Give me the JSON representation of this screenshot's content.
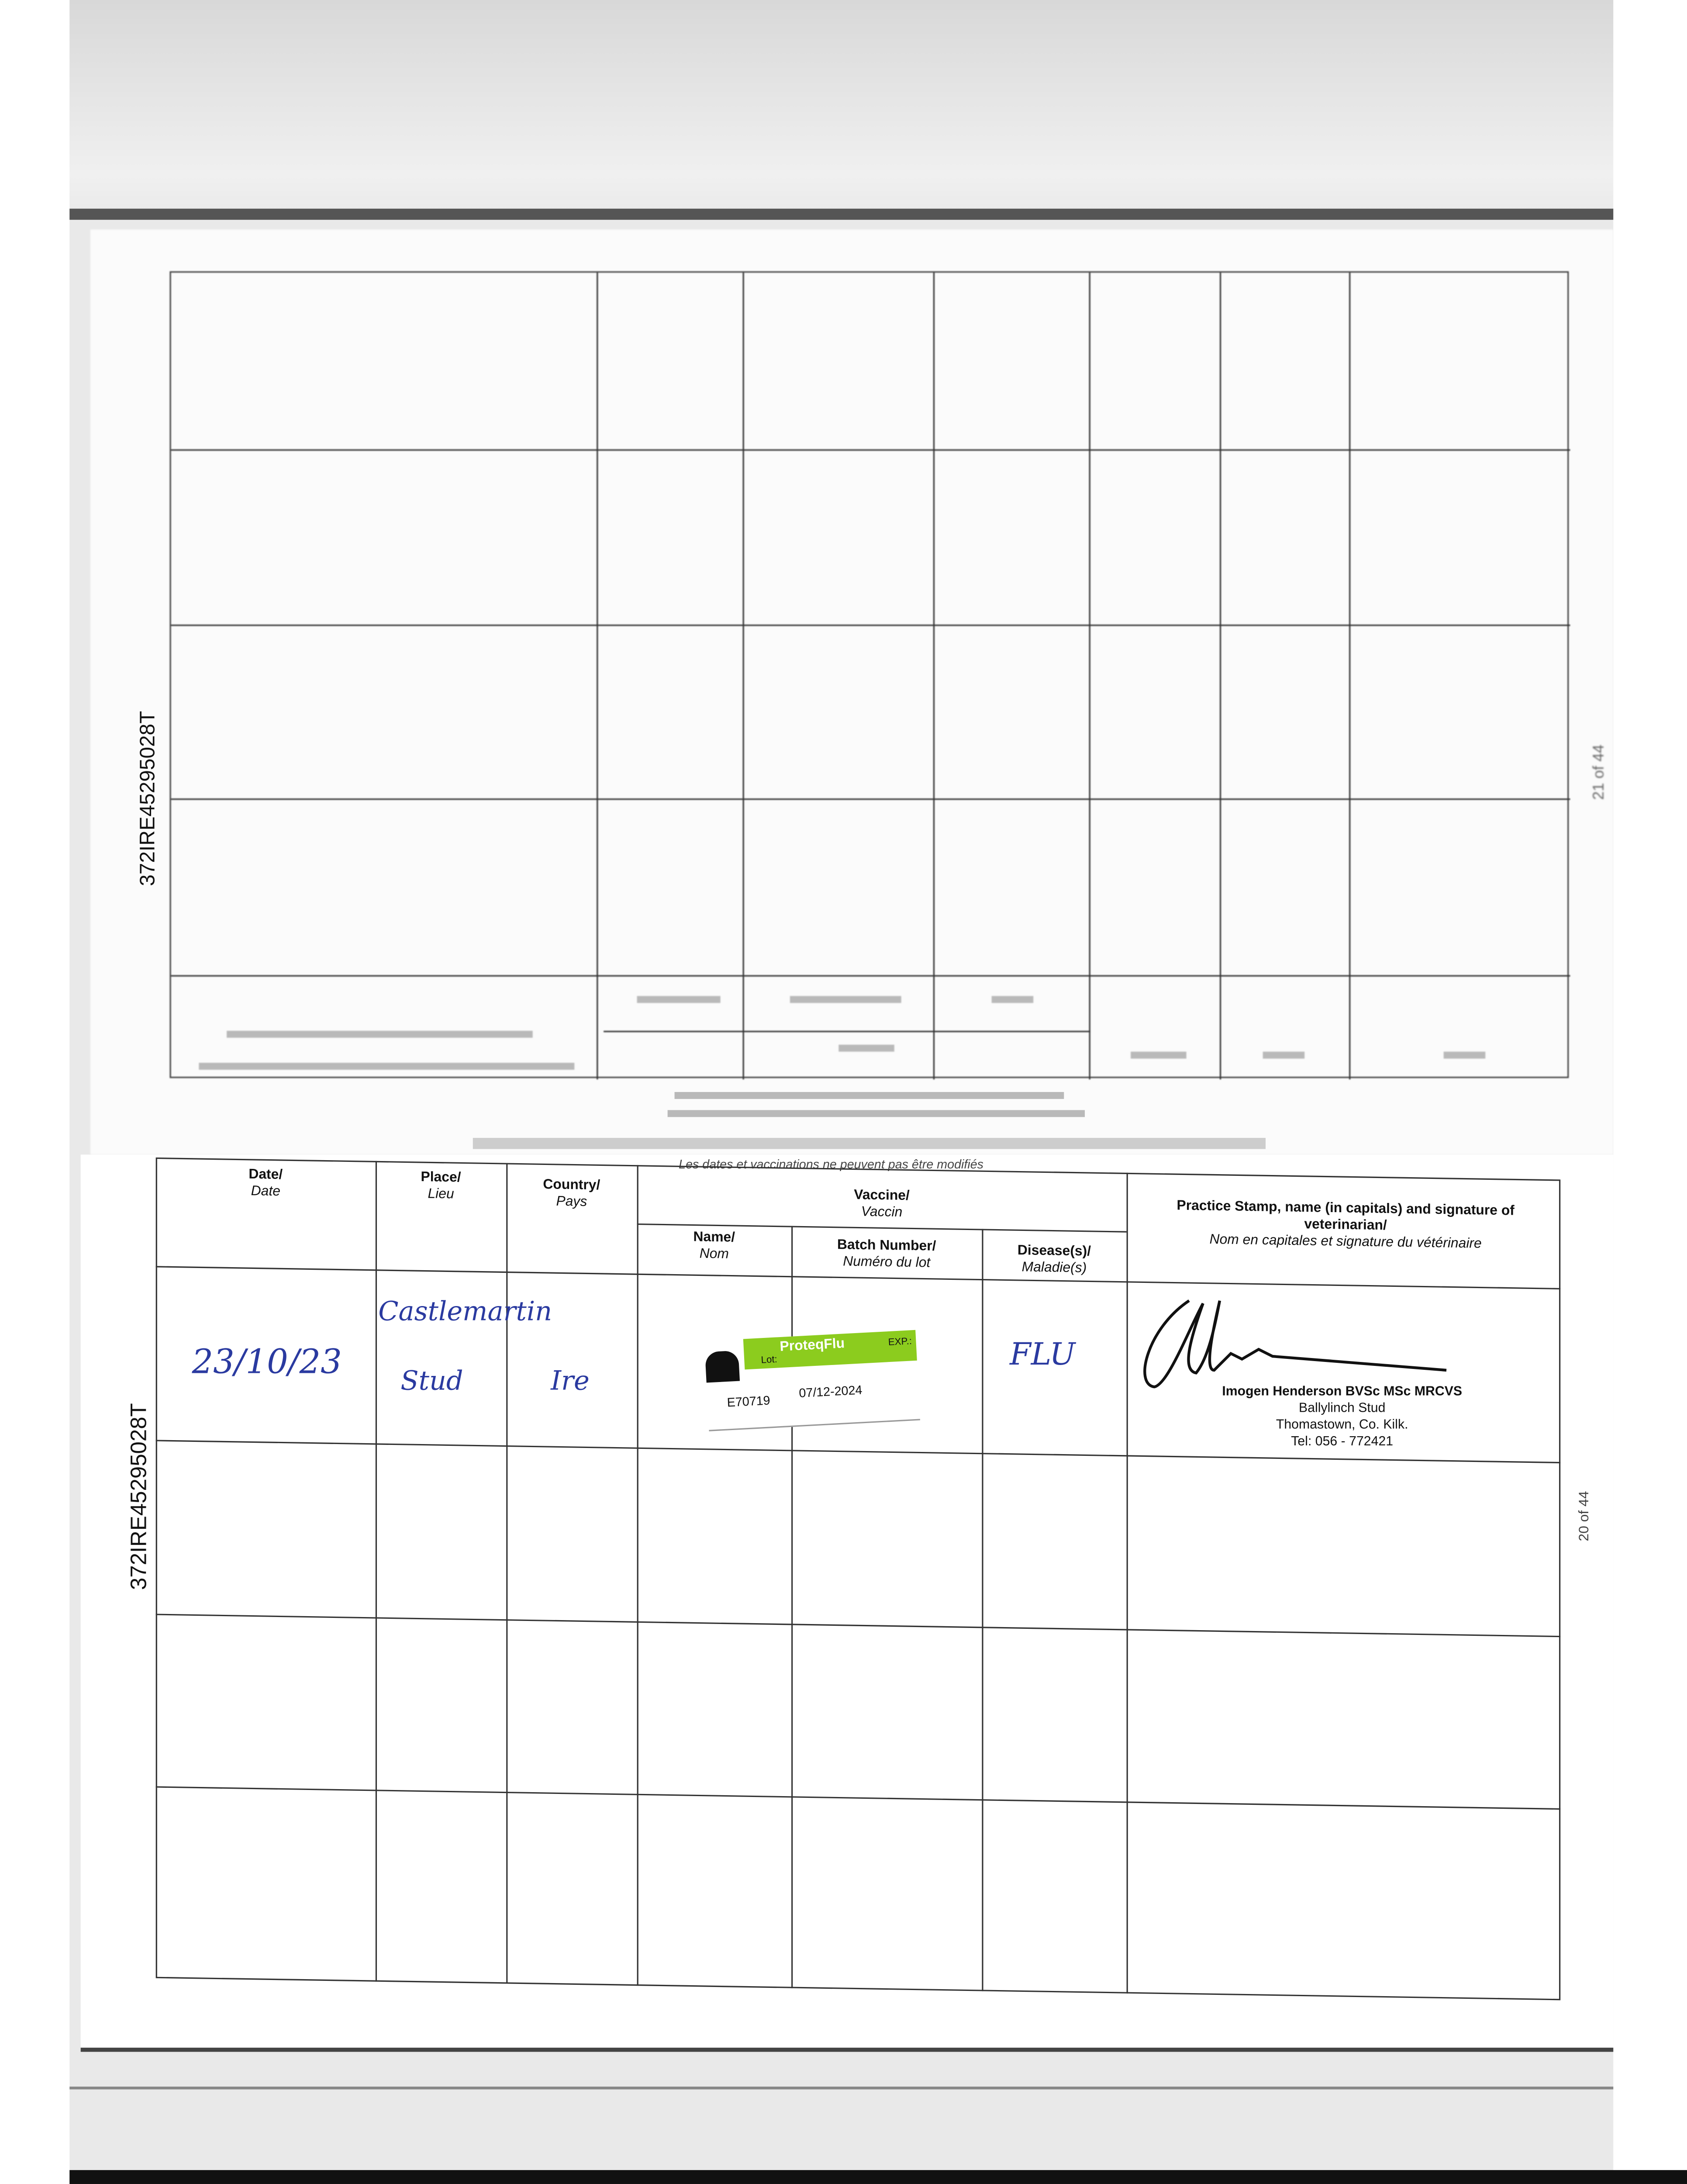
{
  "document": {
    "passport_id": "372IRE45295028T",
    "upper_page_number": "21 of 44",
    "lower_page_number": "20 of 44",
    "notice": "Les dates et vaccinations ne peuvent pas être modifiés"
  },
  "table": {
    "headers": {
      "date": {
        "en": "Date/",
        "fr": "Date"
      },
      "place": {
        "en": "Place/",
        "fr": "Lieu"
      },
      "country": {
        "en": "Country/",
        "fr": "Pays"
      },
      "vaccine": {
        "en": "Vaccine/",
        "fr": "Vaccin"
      },
      "name": {
        "en": "Name/",
        "fr": "Nom"
      },
      "batch": {
        "en": "Batch Number/",
        "fr": "Numéro du lot"
      },
      "disease": {
        "en": "Disease(s)/",
        "fr": "Maladie(s)"
      },
      "stamp": {
        "en": "Practice Stamp, name (in capitals) and signature of veterinarian/",
        "fr": "Nom en capitales et signature du vétérinaire"
      }
    },
    "entries": [
      {
        "date": "23/10/23",
        "place_line1": "Castlemartin",
        "place_line2": "Stud",
        "country": "Ire",
        "vaccine_label": {
          "brand": "ProteqFlu",
          "lot_label": "Lot:",
          "exp_label": "EXP.:",
          "lot": "E70719",
          "exp": "07/12-2024"
        },
        "disease": "FLU",
        "stamp": {
          "name": "Imogen Henderson BVSc MSc MRCVS",
          "practice": "Ballylinch Stud",
          "address": "Thomastown, Co. Kilk.",
          "tel": "Tel: 056 - 772421"
        }
      }
    ]
  },
  "colors": {
    "ink": "#2a3aa0",
    "sticker_green": "#8ccc1e"
  }
}
